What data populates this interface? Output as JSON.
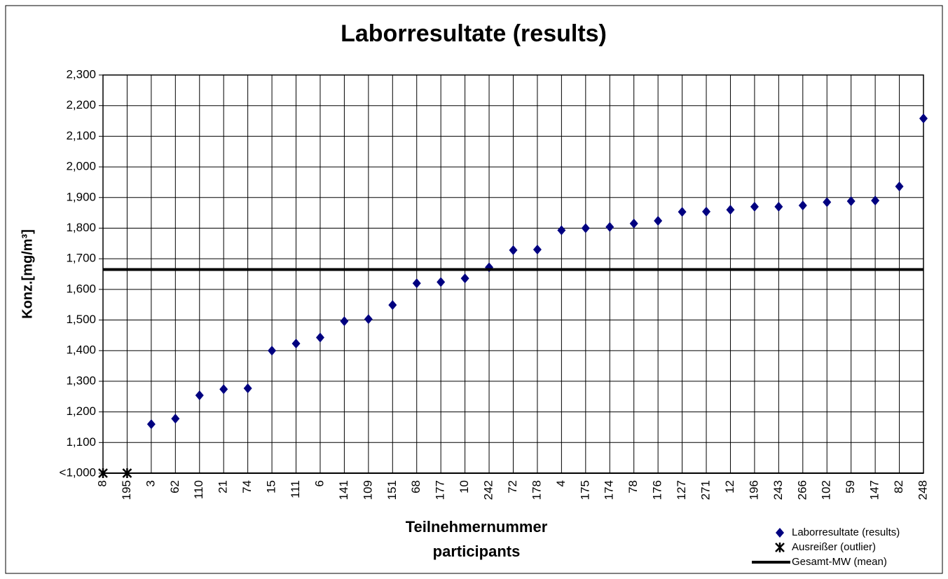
{
  "chart_data": {
    "type": "scatter",
    "title": "Laborresultate (results)",
    "y_label": "Konz.[mg/m³]",
    "x_label": [
      "Teilnehmernummer",
      "participants"
    ],
    "categories": [
      "8",
      "195",
      "3",
      "62",
      "110",
      "21",
      "74",
      "15",
      "111",
      "6",
      "141",
      "109",
      "151",
      "68",
      "177",
      "10",
      "242",
      "72",
      "178",
      "4",
      "175",
      "174",
      "78",
      "176",
      "127",
      "271",
      "12",
      "196",
      "243",
      "266",
      "102",
      "59",
      "147",
      "82",
      "248"
    ],
    "series": [
      {
        "name": "Laborresultate (results)",
        "color": "#000080",
        "marker": "diamond",
        "values": [
          null,
          null,
          1160,
          1178,
          1254,
          1274,
          1277,
          1400,
          1423,
          1443,
          1496,
          1503,
          1549,
          1620,
          1624,
          1636,
          1672,
          1728,
          1730,
          1793,
          1800,
          1804,
          1815,
          1824,
          1853,
          1854,
          1860,
          1870,
          1870,
          1874,
          1885,
          1888,
          1890,
          1936,
          2158
        ]
      },
      {
        "name": "Ausreißer (outlier)",
        "color": "#000000",
        "marker": "asterisk",
        "values": [
          1000,
          1000,
          null,
          null,
          null,
          null,
          null,
          null,
          null,
          null,
          null,
          null,
          null,
          null,
          null,
          null,
          null,
          null,
          null,
          null,
          null,
          null,
          null,
          null,
          null,
          null,
          null,
          null,
          null,
          null,
          null,
          null,
          null,
          null,
          null
        ]
      }
    ],
    "mean": {
      "name": "Gesamt-MW (mean)",
      "color": "#000000",
      "value": 1665
    },
    "ylim": [
      1000,
      2300
    ],
    "yticks": [
      {
        "value": 1000,
        "label": "<1,000"
      },
      {
        "value": 1100,
        "label": "1,100"
      },
      {
        "value": 1200,
        "label": "1,200"
      },
      {
        "value": 1300,
        "label": "1,300"
      },
      {
        "value": 1400,
        "label": "1,400"
      },
      {
        "value": 1500,
        "label": "1,500"
      },
      {
        "value": 1600,
        "label": "1,600"
      },
      {
        "value": 1700,
        "label": "1,700"
      },
      {
        "value": 1800,
        "label": "1,800"
      },
      {
        "value": 1900,
        "label": "1,900"
      },
      {
        "value": 2000,
        "label": "2,000"
      },
      {
        "value": 2100,
        "label": "2,100"
      },
      {
        "value": 2200,
        "label": "2,200"
      },
      {
        "value": 2300,
        "label": "2,300"
      }
    ],
    "grid": true,
    "legend": "bottom-right"
  }
}
